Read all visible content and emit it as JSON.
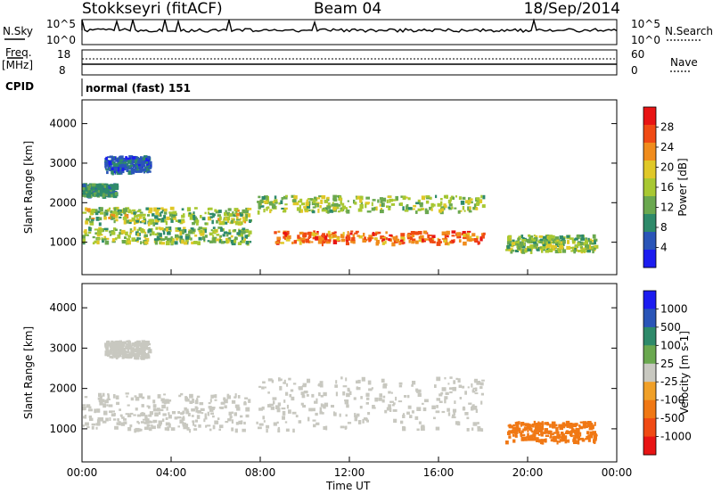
{
  "header": {
    "station": "Stokkseyri (fitACF)",
    "beam": "Beam 04",
    "date": "18/Sep/2014"
  },
  "noise_panel": {
    "left_label": "N.Sky",
    "right_label": "N.Search",
    "ticks_left": [
      "10^5",
      "10^0"
    ],
    "ticks_right": [
      "10^5",
      "10^0"
    ]
  },
  "freq_panel": {
    "left_label_top": "Freq.",
    "left_label_bottom": "[MHz]",
    "right_label": "Nave",
    "ticks_left": [
      "18",
      "8"
    ],
    "ticks_right": [
      "60",
      "0"
    ]
  },
  "cpid_panel": {
    "label": "CPID",
    "text": "normal (fast) 151"
  },
  "x_axis": {
    "title": "Time UT",
    "ticks": [
      "00:00",
      "04:00",
      "08:00",
      "12:00",
      "16:00",
      "20:00",
      "00:00"
    ]
  },
  "colors": {
    "power_scale": [
      "#1c1cf0",
      "#2a55b8",
      "#2e8a6a",
      "#6aa84f",
      "#a8c832",
      "#e0c828",
      "#f08c1c",
      "#f04a14",
      "#e81414"
    ],
    "velocity_scale": [
      "#1c1cf0",
      "#2a55b8",
      "#2e8a6a",
      "#6aa84f",
      "#c8c8c0",
      "#f0a028",
      "#f07814",
      "#f04a14",
      "#e81414"
    ]
  },
  "chart_data": [
    {
      "type": "heatmap",
      "name": "power",
      "xlabel": "Time UT",
      "ylabel": "Slant Range [km]",
      "xlim": [
        0,
        24
      ],
      "ylim": [
        180,
        4600
      ],
      "yticks": [
        "1000",
        "2000",
        "3000",
        "4000"
      ],
      "colorbar": {
        "label": "Power [dB]",
        "ticks": [
          "4",
          "8",
          "12",
          "16",
          "20",
          "24",
          "28"
        ],
        "range": [
          0,
          32
        ]
      },
      "bands": [
        {
          "t0": 0,
          "t1": 1.5,
          "r0": 2200,
          "r1": 2500,
          "v0": 6,
          "v1": 12
        },
        {
          "t0": 0,
          "t1": 7.5,
          "r0": 1000,
          "r1": 1400,
          "v0": 8,
          "v1": 20
        },
        {
          "t0": 0,
          "t1": 7.5,
          "r0": 1500,
          "r1": 1900,
          "v0": 8,
          "v1": 22
        },
        {
          "t0": 1,
          "t1": 3,
          "r0": 2800,
          "r1": 3200,
          "v0": 3,
          "v1": 9
        },
        {
          "t0": 7.8,
          "t1": 18,
          "r0": 1800,
          "r1": 2200,
          "v0": 10,
          "v1": 20
        },
        {
          "t0": 8.5,
          "t1": 18,
          "r0": 1000,
          "r1": 1300,
          "v0": 20,
          "v1": 30
        },
        {
          "t0": 19,
          "t1": 23,
          "r0": 800,
          "r1": 1200,
          "v0": 8,
          "v1": 20
        }
      ]
    },
    {
      "type": "heatmap",
      "name": "velocity",
      "xlabel": "Time UT",
      "ylabel": "Slant Range [km]",
      "xlim": [
        0,
        24
      ],
      "ylim": [
        180,
        4600
      ],
      "yticks": [
        "1000",
        "2000",
        "3000",
        "4000"
      ],
      "colorbar": {
        "label": "Velocity [m s-1]",
        "ticks": [
          "1000",
          "500",
          "100",
          "25",
          "-25",
          "-100",
          "-500",
          "-1000"
        ]
      },
      "bands": [
        {
          "t0": 0,
          "t1": 7.5,
          "r0": 1000,
          "r1": 1900,
          "v0": 0,
          "v1": 25
        },
        {
          "t0": 1,
          "t1": 3,
          "r0": 2800,
          "r1": 3200,
          "v0": -25,
          "v1": 25
        },
        {
          "t0": 7.8,
          "t1": 18,
          "r0": 1000,
          "r1": 2300,
          "v0": -25,
          "v1": 25
        },
        {
          "t0": 19,
          "t1": 23,
          "r0": 700,
          "r1": 1200,
          "v0": -500,
          "v1": -100
        }
      ]
    }
  ]
}
